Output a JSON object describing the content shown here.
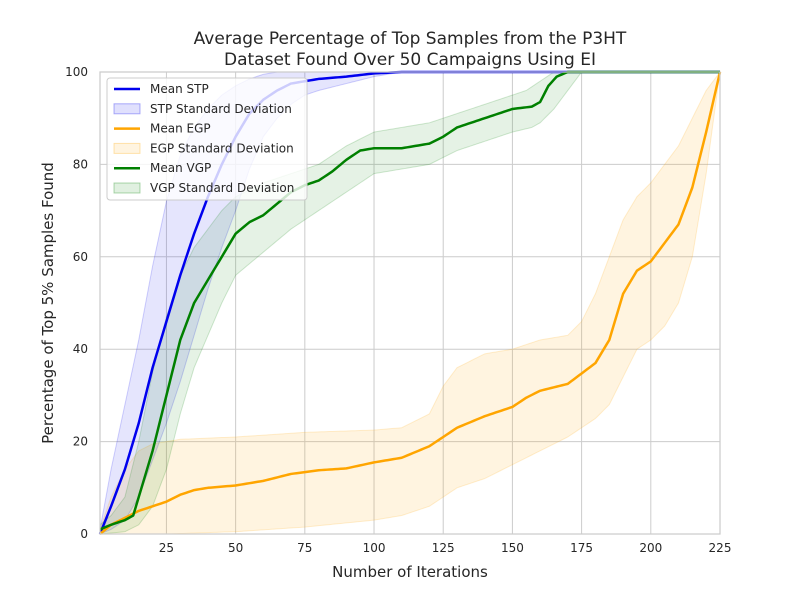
{
  "chart_data": {
    "type": "line",
    "title_lines": [
      "Average Percentage of Top Samples from the P3HT",
      "Dataset Found Over 50 Campaigns Using EI"
    ],
    "xlabel": "Number of Iterations",
    "ylabel": "Percentage of Top 5% Samples Found",
    "xlim": [
      1,
      225
    ],
    "ylim": [
      0,
      100
    ],
    "x_ticks": [
      25,
      50,
      75,
      100,
      125,
      150,
      175,
      200,
      225
    ],
    "y_ticks": [
      0,
      20,
      40,
      60,
      80,
      100
    ],
    "grid": true,
    "legend_position": "top-left",
    "legend": [
      {
        "label": "Mean STP",
        "kind": "line",
        "color": "#0000ee"
      },
      {
        "label": "STP Standard Deviation",
        "kind": "band",
        "color": "#0000ee"
      },
      {
        "label": "Mean EGP",
        "kind": "line",
        "color": "#ffa500"
      },
      {
        "label": "EGP Standard Deviation",
        "kind": "band",
        "color": "#ffa500"
      },
      {
        "label": "Mean VGP",
        "kind": "line",
        "color": "#008000"
      },
      {
        "label": "VGP Standard Deviation",
        "kind": "band",
        "color": "#008000"
      }
    ],
    "series": [
      {
        "name": "Mean STP",
        "color": "#0000ee",
        "band_opacity": 0.1,
        "mean": [
          [
            1,
            0
          ],
          [
            5,
            6
          ],
          [
            10,
            14
          ],
          [
            15,
            24
          ],
          [
            20,
            36
          ],
          [
            25,
            46
          ],
          [
            30,
            56
          ],
          [
            35,
            65
          ],
          [
            40,
            73
          ],
          [
            45,
            80
          ],
          [
            50,
            86
          ],
          [
            55,
            91
          ],
          [
            60,
            94
          ],
          [
            65,
            96
          ],
          [
            70,
            97.5
          ],
          [
            75,
            98
          ],
          [
            80,
            98.5
          ],
          [
            90,
            99
          ],
          [
            100,
            99.7
          ],
          [
            110,
            100
          ],
          [
            225,
            100
          ]
        ],
        "upper": [
          [
            1,
            1
          ],
          [
            5,
            14
          ],
          [
            10,
            28
          ],
          [
            15,
            42
          ],
          [
            20,
            58
          ],
          [
            25,
            72
          ],
          [
            30,
            82
          ],
          [
            35,
            88
          ],
          [
            40,
            92
          ],
          [
            45,
            95
          ],
          [
            50,
            97
          ],
          [
            55,
            98.5
          ],
          [
            60,
            99.5
          ],
          [
            65,
            100
          ],
          [
            225,
            100
          ]
        ],
        "lower": [
          [
            1,
            0
          ],
          [
            5,
            1
          ],
          [
            10,
            3
          ],
          [
            15,
            8
          ],
          [
            20,
            16
          ],
          [
            25,
            24
          ],
          [
            30,
            33
          ],
          [
            35,
            43
          ],
          [
            40,
            53
          ],
          [
            45,
            62
          ],
          [
            50,
            70
          ],
          [
            55,
            79
          ],
          [
            60,
            86
          ],
          [
            65,
            90
          ],
          [
            70,
            93
          ],
          [
            75,
            95
          ],
          [
            80,
            96
          ],
          [
            90,
            97.5
          ],
          [
            100,
            99
          ],
          [
            110,
            100
          ],
          [
            225,
            100
          ]
        ]
      },
      {
        "name": "Mean EGP",
        "color": "#ffa500",
        "band_opacity": 0.12,
        "mean": [
          [
            1,
            0
          ],
          [
            5,
            2
          ],
          [
            10,
            3.5
          ],
          [
            15,
            5
          ],
          [
            20,
            6
          ],
          [
            25,
            7
          ],
          [
            30,
            8.5
          ],
          [
            35,
            9.5
          ],
          [
            40,
            10
          ],
          [
            50,
            10.5
          ],
          [
            60,
            11.5
          ],
          [
            70,
            13
          ],
          [
            80,
            13.8
          ],
          [
            90,
            14.2
          ],
          [
            100,
            15.5
          ],
          [
            110,
            16.5
          ],
          [
            120,
            19
          ],
          [
            130,
            23
          ],
          [
            140,
            25.5
          ],
          [
            150,
            27.5
          ],
          [
            155,
            29.5
          ],
          [
            160,
            31
          ],
          [
            170,
            32.5
          ],
          [
            180,
            37
          ],
          [
            185,
            42
          ],
          [
            190,
            52
          ],
          [
            195,
            57
          ],
          [
            200,
            59
          ],
          [
            205,
            63
          ],
          [
            210,
            67
          ],
          [
            215,
            75
          ],
          [
            220,
            87
          ],
          [
            225,
            100
          ]
        ],
        "upper": [
          [
            1,
            1
          ],
          [
            5,
            8
          ],
          [
            10,
            14
          ],
          [
            15,
            18
          ],
          [
            20,
            19.5
          ],
          [
            30,
            20.5
          ],
          [
            50,
            21
          ],
          [
            75,
            22
          ],
          [
            100,
            22.5
          ],
          [
            110,
            23
          ],
          [
            120,
            26
          ],
          [
            125,
            32
          ],
          [
            130,
            36
          ],
          [
            140,
            39
          ],
          [
            150,
            40
          ],
          [
            160,
            42
          ],
          [
            170,
            43
          ],
          [
            175,
            46
          ],
          [
            180,
            52
          ],
          [
            185,
            60
          ],
          [
            190,
            68
          ],
          [
            195,
            73
          ],
          [
            200,
            76
          ],
          [
            205,
            80
          ],
          [
            210,
            84
          ],
          [
            215,
            90
          ],
          [
            220,
            96
          ],
          [
            225,
            100
          ]
        ],
        "lower": [
          [
            1,
            0
          ],
          [
            25,
            0
          ],
          [
            50,
            0.5
          ],
          [
            75,
            1.5
          ],
          [
            100,
            3
          ],
          [
            110,
            4
          ],
          [
            120,
            6
          ],
          [
            130,
            10
          ],
          [
            140,
            12
          ],
          [
            150,
            15
          ],
          [
            160,
            18
          ],
          [
            170,
            21
          ],
          [
            180,
            25
          ],
          [
            185,
            28
          ],
          [
            190,
            34
          ],
          [
            195,
            40
          ],
          [
            200,
            42
          ],
          [
            205,
            45
          ],
          [
            210,
            50
          ],
          [
            215,
            60
          ],
          [
            220,
            78
          ],
          [
            225,
            100
          ]
        ]
      },
      {
        "name": "Mean VGP",
        "color": "#008000",
        "band_opacity": 0.1,
        "mean": [
          [
            1,
            1
          ],
          [
            5,
            2
          ],
          [
            10,
            3
          ],
          [
            13,
            4
          ],
          [
            15,
            8
          ],
          [
            20,
            18
          ],
          [
            25,
            30
          ],
          [
            30,
            42
          ],
          [
            35,
            50
          ],
          [
            40,
            55
          ],
          [
            45,
            60
          ],
          [
            50,
            65
          ],
          [
            55,
            67.5
          ],
          [
            60,
            69
          ],
          [
            65,
            71.5
          ],
          [
            70,
            74
          ],
          [
            75,
            75.5
          ],
          [
            80,
            76.5
          ],
          [
            85,
            78.5
          ],
          [
            90,
            81
          ],
          [
            95,
            83
          ],
          [
            100,
            83.5
          ],
          [
            110,
            83.5
          ],
          [
            120,
            84.5
          ],
          [
            125,
            86
          ],
          [
            130,
            88
          ],
          [
            140,
            90
          ],
          [
            150,
            92
          ],
          [
            157,
            92.5
          ],
          [
            160,
            93.5
          ],
          [
            163,
            97
          ],
          [
            166,
            99
          ],
          [
            170,
            100
          ],
          [
            225,
            100
          ]
        ],
        "upper": [
          [
            1,
            2
          ],
          [
            5,
            4
          ],
          [
            10,
            8
          ],
          [
            15,
            20
          ],
          [
            20,
            35
          ],
          [
            25,
            47
          ],
          [
            30,
            56
          ],
          [
            35,
            62
          ],
          [
            40,
            66
          ],
          [
            45,
            70
          ],
          [
            50,
            73
          ],
          [
            60,
            76
          ],
          [
            70,
            78
          ],
          [
            80,
            80
          ],
          [
            90,
            84
          ],
          [
            100,
            87
          ],
          [
            110,
            88
          ],
          [
            120,
            89
          ],
          [
            130,
            91
          ],
          [
            140,
            93
          ],
          [
            150,
            95
          ],
          [
            155,
            96
          ],
          [
            160,
            98
          ],
          [
            165,
            100
          ],
          [
            225,
            100
          ]
        ],
        "lower": [
          [
            1,
            0
          ],
          [
            10,
            0.5
          ],
          [
            15,
            2
          ],
          [
            20,
            6
          ],
          [
            25,
            14
          ],
          [
            30,
            26
          ],
          [
            35,
            36
          ],
          [
            40,
            43
          ],
          [
            45,
            50
          ],
          [
            50,
            56
          ],
          [
            60,
            61
          ],
          [
            70,
            66
          ],
          [
            80,
            70
          ],
          [
            90,
            74
          ],
          [
            100,
            78
          ],
          [
            110,
            79
          ],
          [
            120,
            80
          ],
          [
            130,
            83
          ],
          [
            140,
            85
          ],
          [
            150,
            87
          ],
          [
            157,
            88
          ],
          [
            160,
            89
          ],
          [
            165,
            92
          ],
          [
            170,
            96
          ],
          [
            175,
            100
          ],
          [
            225,
            100
          ]
        ]
      }
    ]
  }
}
